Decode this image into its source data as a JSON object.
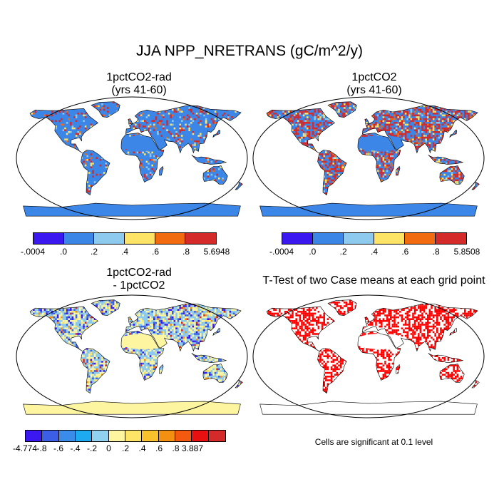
{
  "title": "JJA NPP_NRETRANS (gC/m^2/y)",
  "panels": {
    "p1": {
      "title_line1": "1pctCO2-rad",
      "title_line2": "(yrs 41-60)"
    },
    "p2": {
      "title_line1": "1pctCO2",
      "title_line2": "(yrs 41-60)"
    },
    "p3": {
      "title_line1": "1pctCO2-rad",
      "title_line2": "- 1pctCO2"
    },
    "p4": {
      "title": "T-Test of two Case means at each grid point",
      "note": "Cells are significant at 0.1 level"
    }
  },
  "colorbars": {
    "cb1": {
      "colors": [
        "#3b17f0",
        "#3c86e8",
        "#8ec9ee",
        "#fde466",
        "#f36b11",
        "#d42a2a"
      ],
      "labels": [
        "-.0004",
        ".0",
        ".2",
        ".4",
        ".6",
        ".8",
        "5.6948"
      ]
    },
    "cb2": {
      "colors": [
        "#3b17f0",
        "#3c86e8",
        "#8ec9ee",
        "#fde466",
        "#f36b11",
        "#d42a2a"
      ],
      "labels": [
        "-.0004",
        ".0",
        ".2",
        ".4",
        ".6",
        ".8",
        "5.8508"
      ]
    },
    "cb3": {
      "colors": [
        "#3b17f0",
        "#3c5ee6",
        "#3a8cea",
        "#1eaaf0",
        "#8fd1ee",
        "#fdf5a0",
        "#fde466",
        "#f9c12b",
        "#f39012",
        "#f35a0f",
        "#e81010",
        "#d42a2a"
      ],
      "labels": [
        "-4.774",
        "-.8",
        "-.6",
        "-.4",
        "-.2",
        "0",
        ".2",
        ".4",
        ".6",
        ".8",
        "3.887"
      ]
    }
  },
  "map_colors": {
    "ocean": "#ffffff",
    "land_outline": "#000000",
    "blue": "#3c86e8",
    "red": "#d42a2a",
    "yellow": "#fde466",
    "light_blue": "#8ec9ee",
    "pale_yellow": "#fdf5a0",
    "dark_blue": "#3b17f0",
    "signif_red": "#ff0000"
  }
}
